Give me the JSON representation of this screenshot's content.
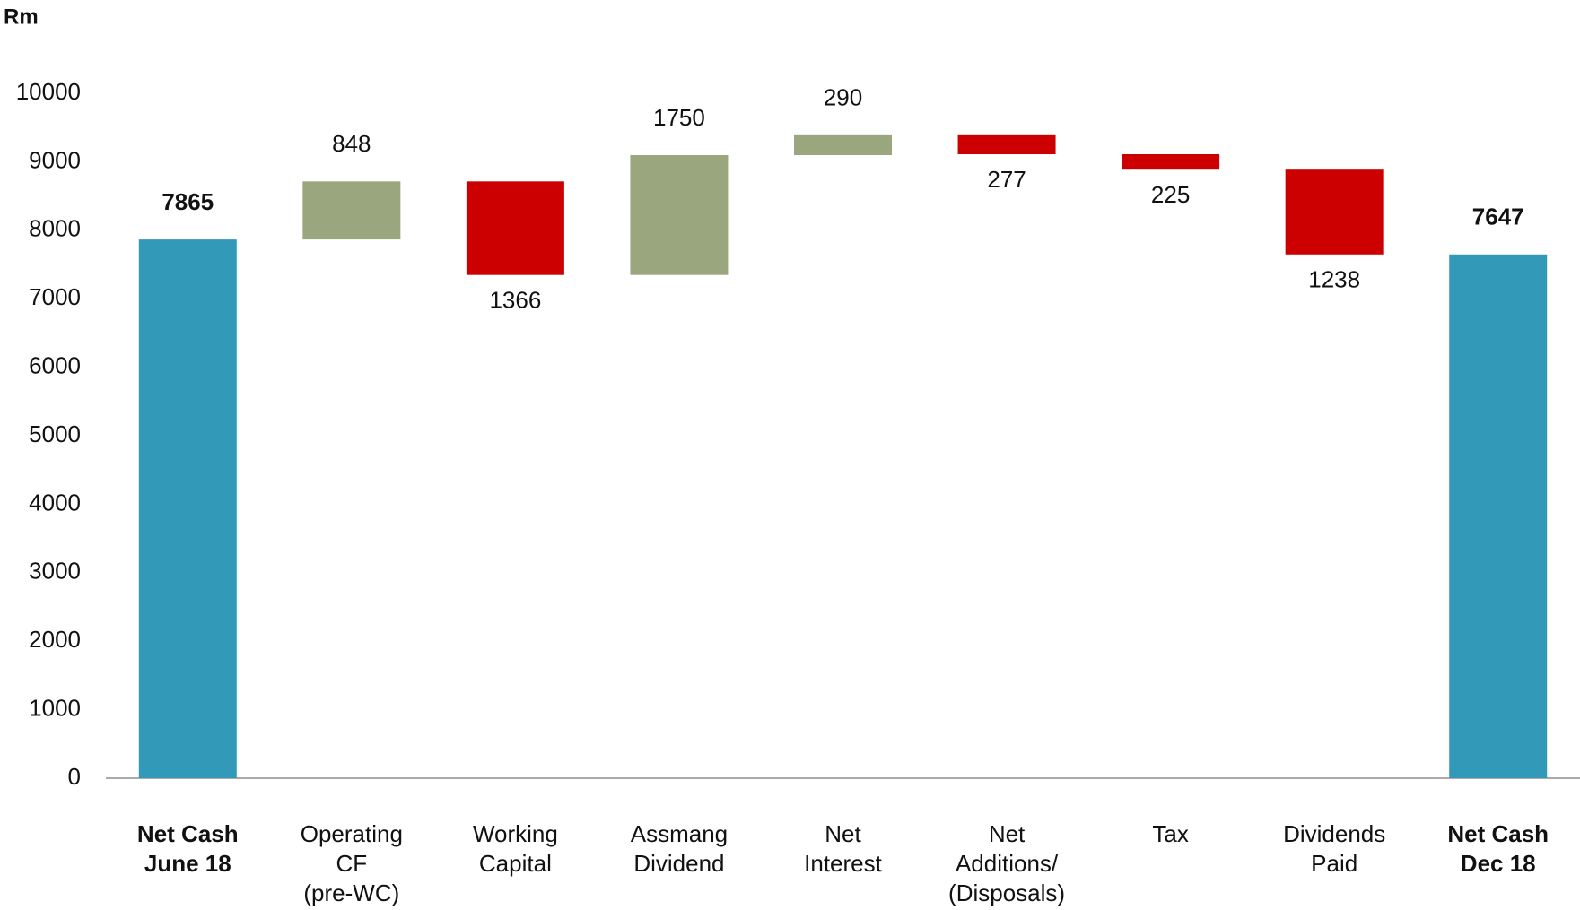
{
  "chart_data": {
    "type": "waterfall",
    "title": "Rm",
    "categories": [
      [
        "Net Cash",
        "June 18"
      ],
      [
        "Operating",
        "CF",
        "(pre-WC)"
      ],
      [
        "Working",
        "Capital"
      ],
      [
        "Assmang",
        "Dividend"
      ],
      [
        "Net",
        "Interest"
      ],
      [
        "Net",
        "Additions/",
        "(Disposals)"
      ],
      [
        "Tax"
      ],
      [
        "Dividends",
        "Paid"
      ],
      [
        "Net Cash",
        "Dec 18"
      ]
    ],
    "values": [
      7865,
      848,
      -1366,
      1750,
      290,
      -277,
      -225,
      -1238,
      7647
    ],
    "value_labels": [
      "7865",
      "848",
      "1366",
      "1750",
      "290",
      "277",
      "225",
      "1238",
      "7647"
    ],
    "total": [
      true,
      false,
      false,
      false,
      false,
      false,
      false,
      false,
      true
    ],
    "colors": {
      "total": "#3399b8",
      "increase": "#9aa67e",
      "decrease": "#cc0000"
    },
    "ylim": [
      0,
      10000
    ],
    "yticks": [
      0,
      1000,
      2000,
      3000,
      4000,
      5000,
      6000,
      7000,
      8000,
      9000,
      10000
    ],
    "grid": false
  }
}
